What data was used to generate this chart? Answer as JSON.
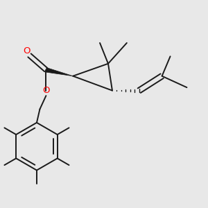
{
  "bg_color": "#e8e8e8",
  "bond_color": "#1a1a1a",
  "oxygen_color": "#ff0000",
  "line_width": 1.4,
  "fig_size": [
    3.0,
    3.0
  ],
  "dpi": 100
}
